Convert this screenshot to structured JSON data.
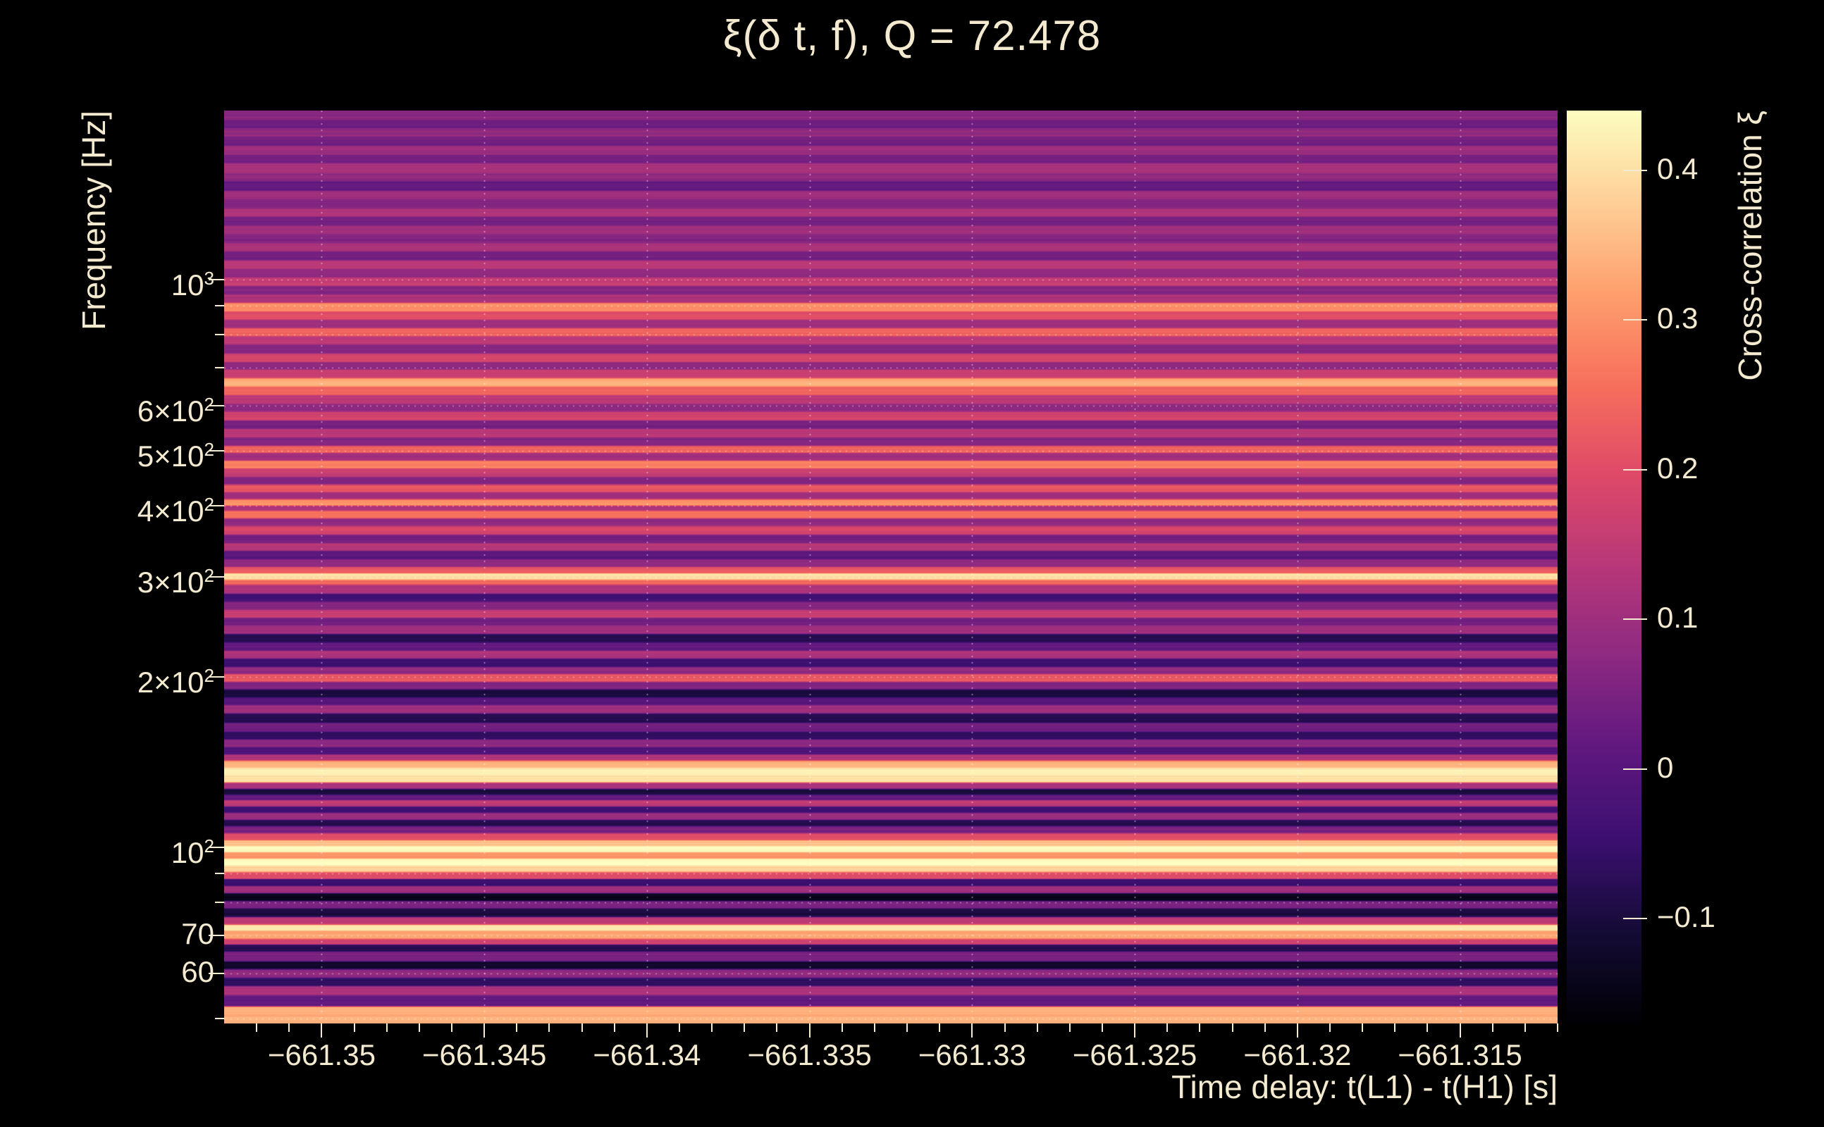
{
  "colors": {
    "background": "#000000",
    "text": "#f4ead0",
    "grid": "#ffffff"
  },
  "chart_data": {
    "type": "heatmap",
    "title": "ξ(δ t, f), Q = 72.478",
    "xlabel": "Time delay: t(L1) - t(H1) [s]",
    "ylabel": "Frequency [Hz]",
    "colorbar_label": "Cross-correlation ξ",
    "colormap": "magma",
    "x_range": [
      -661.353,
      -661.312
    ],
    "y_range_hz": [
      49,
      1985
    ],
    "y_scale": "log",
    "color_range": [
      -0.17,
      0.44
    ],
    "grid": "dotted",
    "x_ticks": [
      {
        "value": -661.35,
        "label": "−661.35"
      },
      {
        "value": -661.345,
        "label": "−661.345"
      },
      {
        "value": -661.34,
        "label": "−661.34"
      },
      {
        "value": -661.335,
        "label": "−661.335"
      },
      {
        "value": -661.33,
        "label": "−661.33"
      },
      {
        "value": -661.325,
        "label": "−661.325"
      },
      {
        "value": -661.32,
        "label": "−661.32"
      },
      {
        "value": -661.315,
        "label": "−661.315"
      }
    ],
    "x_minor_step": 0.001,
    "y_ticks": [
      {
        "value": 1000,
        "label": "10",
        "sup": "3"
      },
      {
        "value": 600,
        "label": "6×10",
        "sup": "2"
      },
      {
        "value": 500,
        "label": "5×10",
        "sup": "2"
      },
      {
        "value": 400,
        "label": "4×10",
        "sup": "2"
      },
      {
        "value": 300,
        "label": "3×10",
        "sup": "2"
      },
      {
        "value": 200,
        "label": "2×10",
        "sup": "2"
      },
      {
        "value": 100,
        "label": "10",
        "sup": "2"
      },
      {
        "value": 70,
        "label": "70"
      },
      {
        "value": 60,
        "label": "60"
      }
    ],
    "y_minor_hz": [
      50,
      60,
      70,
      80,
      90,
      100,
      200,
      300,
      400,
      500,
      600,
      700,
      800,
      900,
      1000
    ],
    "colorbar_ticks": [
      {
        "value": 0.4,
        "label": "0.4"
      },
      {
        "value": 0.3,
        "label": "0.3"
      },
      {
        "value": 0.2,
        "label": "0.2"
      },
      {
        "value": 0.1,
        "label": "0.1"
      },
      {
        "value": 0,
        "label": "0"
      },
      {
        "value": -0.1,
        "label": "−0.1"
      }
    ],
    "bands": [
      [
        49,
        52.5,
        0.34
      ],
      [
        52.5,
        55,
        0.02
      ],
      [
        55,
        57,
        0.12
      ],
      [
        57,
        59,
        -0.06
      ],
      [
        59,
        61,
        0.08
      ],
      [
        61,
        63,
        -0.12
      ],
      [
        63,
        65.5,
        0.05
      ],
      [
        65.5,
        67.5,
        -0.08
      ],
      [
        67.5,
        69,
        0.18
      ],
      [
        69,
        71.5,
        0.32
      ],
      [
        71.5,
        73,
        0.42
      ],
      [
        73,
        75.5,
        0.15
      ],
      [
        75.5,
        78,
        -0.1
      ],
      [
        78,
        80.5,
        0.05
      ],
      [
        80.5,
        83,
        -0.14
      ],
      [
        83,
        85.5,
        0.1
      ],
      [
        85.5,
        88,
        -0.05
      ],
      [
        88,
        90.5,
        0.2
      ],
      [
        90.5,
        93,
        0.38
      ],
      [
        93,
        95.5,
        0.44
      ],
      [
        95.5,
        98,
        0.3
      ],
      [
        98,
        100.5,
        0.44
      ],
      [
        100.5,
        103,
        0.36
      ],
      [
        103,
        106,
        0.2
      ],
      [
        106,
        109,
        0.05
      ],
      [
        109,
        112,
        -0.08
      ],
      [
        112,
        115,
        0.1
      ],
      [
        115,
        118,
        -0.04
      ],
      [
        118,
        121,
        0.15
      ],
      [
        121,
        124,
        0.02
      ],
      [
        124,
        127,
        -0.1
      ],
      [
        127,
        130,
        0.12
      ],
      [
        130,
        134,
        0.4
      ],
      [
        134,
        138,
        0.42
      ],
      [
        138,
        142,
        0.34
      ],
      [
        142,
        146,
        0.12
      ],
      [
        146,
        150,
        -0.02
      ],
      [
        150,
        155,
        0.08
      ],
      [
        155,
        160,
        -0.06
      ],
      [
        160,
        166,
        0.04
      ],
      [
        166,
        172,
        -0.08
      ],
      [
        172,
        178,
        0.1
      ],
      [
        178,
        184,
        0
      ],
      [
        184,
        190,
        -0.1
      ],
      [
        190,
        196,
        0.06
      ],
      [
        196,
        202,
        0.22
      ],
      [
        202,
        208,
        0.08
      ],
      [
        208,
        215,
        -0.04
      ],
      [
        215,
        222,
        0.12
      ],
      [
        222,
        230,
        0.02
      ],
      [
        230,
        238,
        -0.08
      ],
      [
        238,
        246,
        0.1
      ],
      [
        246,
        254,
        0.04
      ],
      [
        254,
        262,
        0.16
      ],
      [
        262,
        271,
        0.06
      ],
      [
        271,
        280,
        -0.04
      ],
      [
        280,
        290,
        0.12
      ],
      [
        290,
        296,
        0.25
      ],
      [
        296,
        304,
        0.4
      ],
      [
        304,
        312,
        0.22
      ],
      [
        312,
        322,
        0.08
      ],
      [
        322,
        333,
        0
      ],
      [
        333,
        344,
        0.14
      ],
      [
        344,
        356,
        0.04
      ],
      [
        356,
        368,
        0.18
      ],
      [
        368,
        380,
        0.08
      ],
      [
        380,
        392,
        0.26
      ],
      [
        392,
        400,
        0.12
      ],
      [
        400,
        410,
        0.3
      ],
      [
        410,
        422,
        0.1
      ],
      [
        422,
        435,
        0.22
      ],
      [
        435,
        450,
        0.06
      ],
      [
        450,
        465,
        0.16
      ],
      [
        465,
        480,
        0.28
      ],
      [
        480,
        495,
        0.1
      ],
      [
        495,
        510,
        0.24
      ],
      [
        510,
        528,
        0.06
      ],
      [
        528,
        546,
        0.14
      ],
      [
        546,
        565,
        0.04
      ],
      [
        565,
        585,
        0.18
      ],
      [
        585,
        605,
        0.08
      ],
      [
        605,
        626,
        0.14
      ],
      [
        626,
        648,
        0.24
      ],
      [
        648,
        670,
        0.34
      ],
      [
        670,
        693,
        0.16
      ],
      [
        693,
        717,
        0.08
      ],
      [
        717,
        742,
        0.18
      ],
      [
        742,
        768,
        0.06
      ],
      [
        768,
        795,
        0.14
      ],
      [
        795,
        822,
        0.24
      ],
      [
        822,
        850,
        0.1
      ],
      [
        850,
        880,
        0.2
      ],
      [
        880,
        910,
        0.3
      ],
      [
        910,
        942,
        0.12
      ],
      [
        942,
        975,
        0.06
      ],
      [
        975,
        1010,
        0.16
      ],
      [
        1010,
        1045,
        0.08
      ],
      [
        1045,
        1080,
        0.14
      ],
      [
        1080,
        1120,
        0.04
      ],
      [
        1120,
        1160,
        0.12
      ],
      [
        1160,
        1200,
        0.06
      ],
      [
        1200,
        1245,
        0.1
      ],
      [
        1245,
        1290,
        0.04
      ],
      [
        1290,
        1335,
        0.12
      ],
      [
        1335,
        1385,
        0.06
      ],
      [
        1385,
        1435,
        0.1
      ],
      [
        1435,
        1490,
        0.02
      ],
      [
        1490,
        1545,
        0.08
      ],
      [
        1545,
        1600,
        0.12
      ],
      [
        1600,
        1660,
        0.05
      ],
      [
        1660,
        1720,
        0.1
      ],
      [
        1720,
        1785,
        0.04
      ],
      [
        1785,
        1850,
        0.08
      ],
      [
        1850,
        1915,
        0.03
      ],
      [
        1915,
        1985,
        0.07
      ]
    ]
  }
}
